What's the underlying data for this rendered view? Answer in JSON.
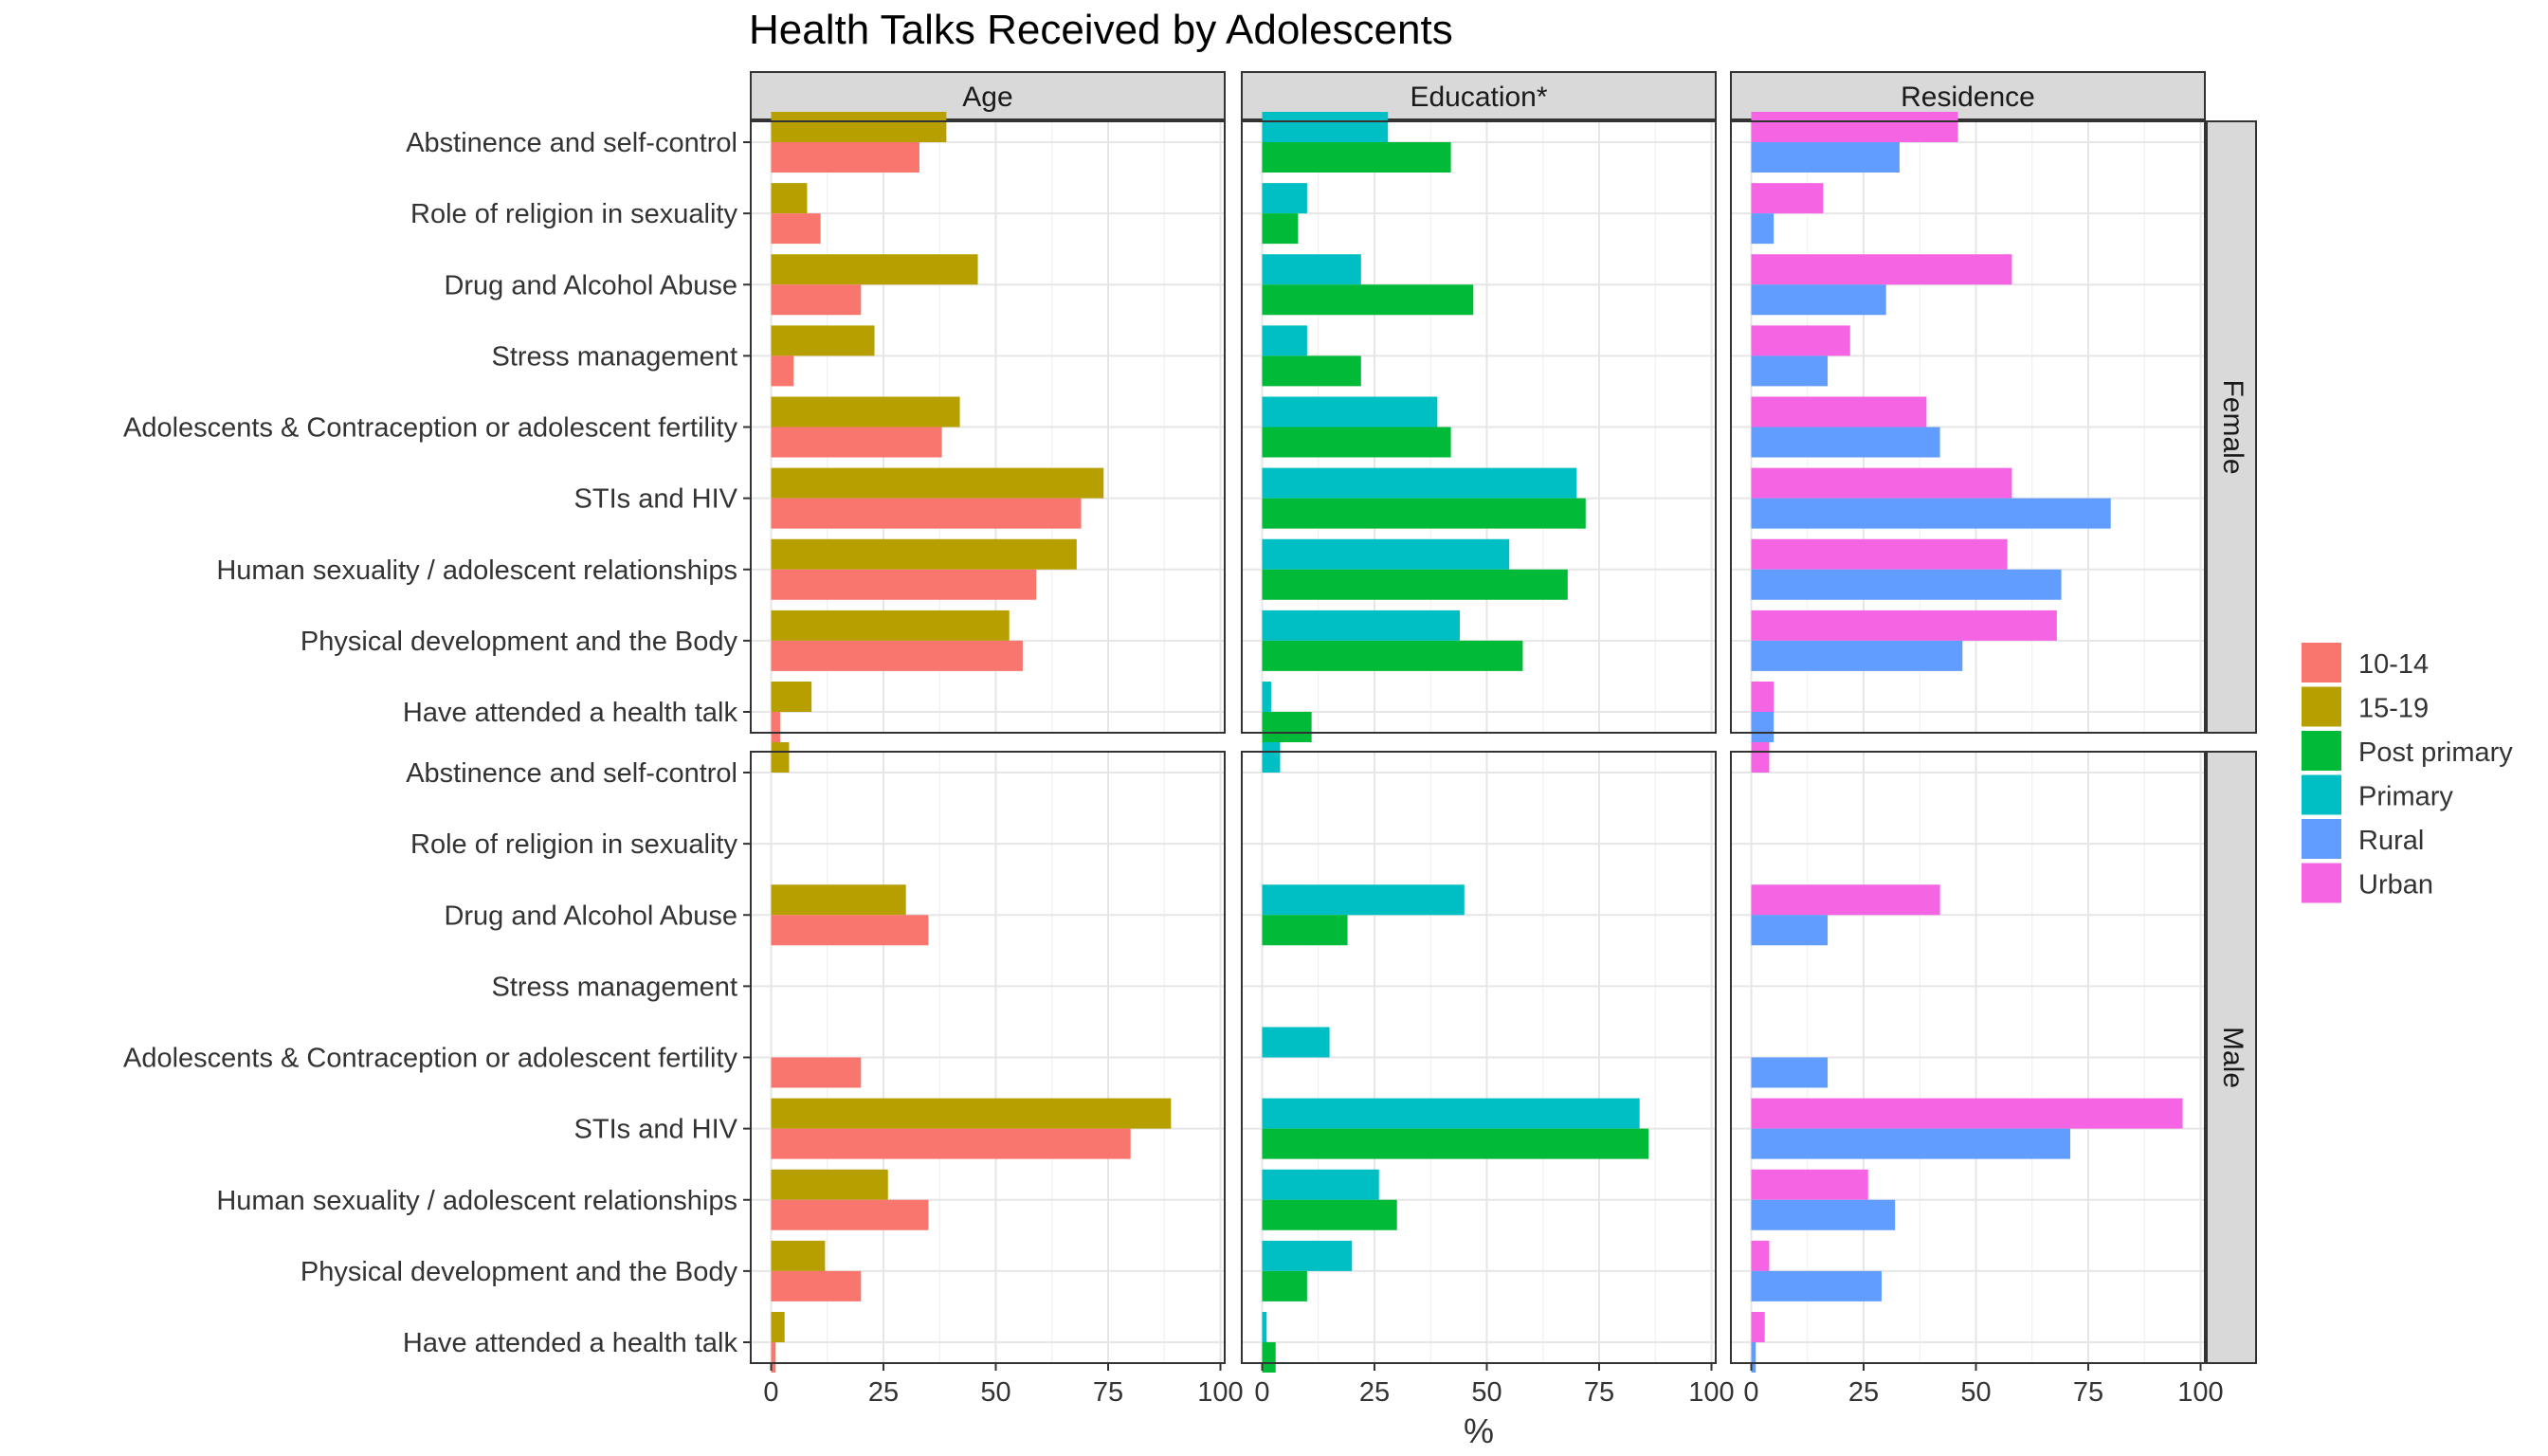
{
  "chart_data": {
    "type": "bar",
    "orientation": "horizontal",
    "title": "Health Talks Received by Adolescents",
    "xlabel": "%",
    "ylabel": "",
    "xlim": [
      0,
      100
    ],
    "x_ticks": [
      "0",
      "25",
      "50",
      "75",
      "100"
    ],
    "grid": true,
    "legend_position": "right",
    "column_facets": [
      "Age",
      "Education*",
      "Residence"
    ],
    "row_facets": [
      "Female",
      "Male"
    ],
    "categories": [
      "Abstinence and self-control",
      "Role of religion in sexuality",
      "Drug and Alcohol Abuse",
      "Stress management",
      "Adolescents & Contraception or adolescent fertility",
      "STIs and HIV",
      "Human sexuality / adolescent relationships",
      "Physical development and the Body",
      "Have attended a health talk"
    ],
    "legend": [
      {
        "name": "10-14",
        "color": "#F8766D"
      },
      {
        "name": "15-19",
        "color": "#B79F00"
      },
      {
        "name": "Post primary",
        "color": "#00BA38"
      },
      {
        "name": "Primary",
        "color": "#00BFC4"
      },
      {
        "name": "Rural",
        "color": "#619CFF"
      },
      {
        "name": "Urban",
        "color": "#F564E3"
      }
    ],
    "panels": [
      {
        "row": "Female",
        "column": "Age",
        "series": [
          {
            "name": "15-19",
            "values": [
              39,
              8,
              46,
              23,
              42,
              74,
              68,
              53,
              9
            ]
          },
          {
            "name": "10-14",
            "values": [
              33,
              11,
              20,
              5,
              38,
              69,
              59,
              56,
              2
            ]
          }
        ]
      },
      {
        "row": "Female",
        "column": "Education*",
        "series": [
          {
            "name": "Primary",
            "values": [
              28,
              10,
              22,
              10,
              39,
              70,
              55,
              44,
              2
            ]
          },
          {
            "name": "Post primary",
            "values": [
              42,
              8,
              47,
              22,
              42,
              72,
              68,
              58,
              11
            ]
          }
        ]
      },
      {
        "row": "Female",
        "column": "Residence",
        "series": [
          {
            "name": "Urban",
            "values": [
              46,
              16,
              58,
              22,
              39,
              58,
              57,
              68,
              5
            ]
          },
          {
            "name": "Rural",
            "values": [
              33,
              5,
              30,
              17,
              42,
              80,
              69,
              47,
              5
            ]
          }
        ]
      },
      {
        "row": "Male",
        "column": "Age",
        "series": [
          {
            "name": "15-19",
            "values": [
              4,
              0,
              30,
              0,
              0,
              89,
              26,
              12,
              3
            ]
          },
          {
            "name": "10-14",
            "values": [
              0,
              0,
              35,
              0,
              20,
              80,
              35,
              20,
              1
            ]
          }
        ]
      },
      {
        "row": "Male",
        "column": "Education*",
        "series": [
          {
            "name": "Primary",
            "values": [
              4,
              0,
              45,
              0,
              15,
              84,
              26,
              20,
              1
            ]
          },
          {
            "name": "Post primary",
            "values": [
              0,
              0,
              19,
              0,
              0,
              86,
              30,
              10,
              3
            ]
          }
        ]
      },
      {
        "row": "Male",
        "column": "Residence",
        "series": [
          {
            "name": "Urban",
            "values": [
              4,
              0,
              42,
              0,
              0,
              96,
              26,
              4,
              3
            ]
          },
          {
            "name": "Rural",
            "values": [
              0,
              0,
              17,
              0,
              17,
              71,
              32,
              29,
              1
            ]
          }
        ]
      }
    ]
  }
}
